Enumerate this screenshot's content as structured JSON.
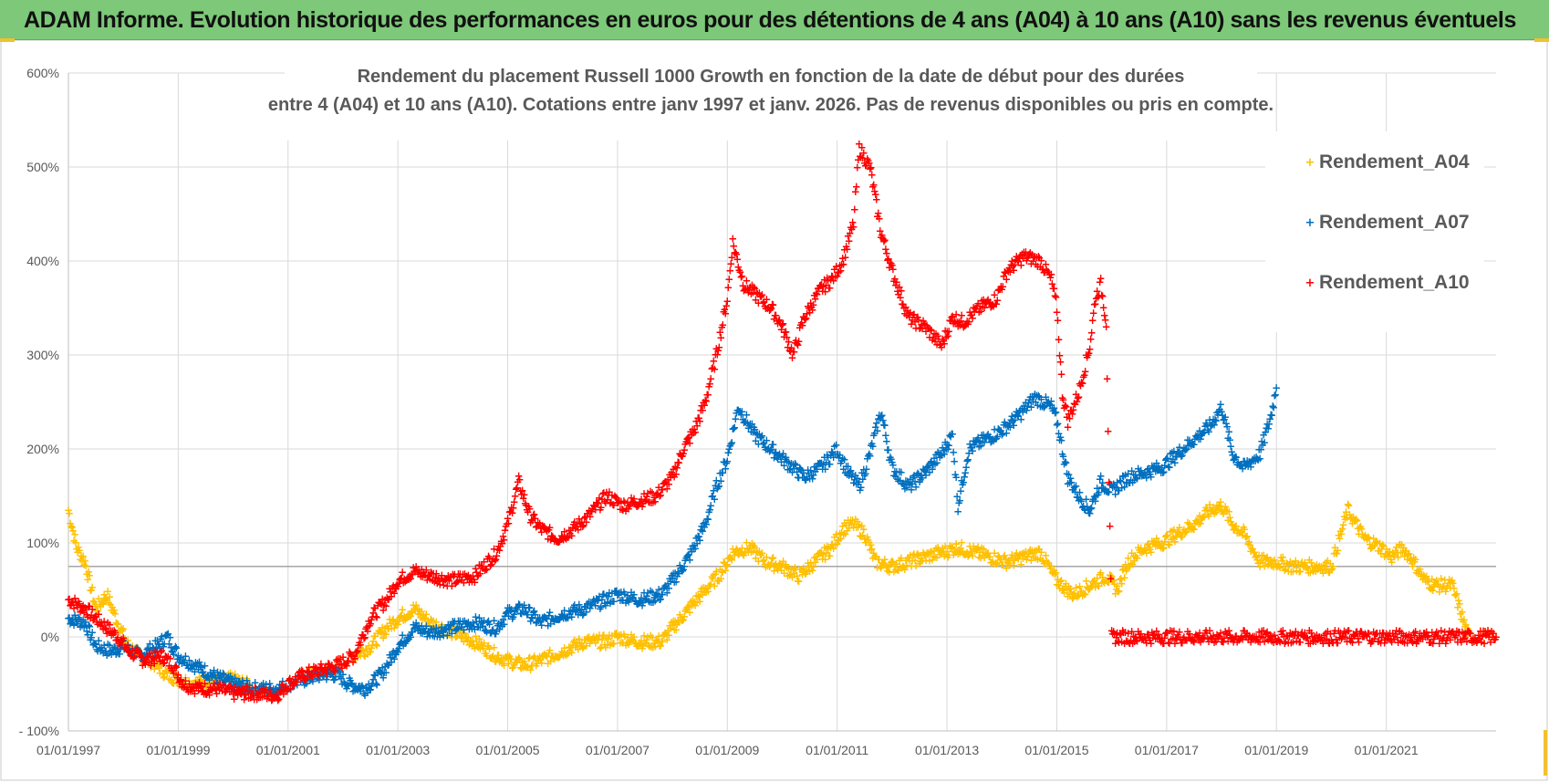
{
  "banner": {
    "title": "ADAM Informe. Evolution historique des performances en euros pour des détentions de 4 ans (A04) à 10 ans (A10) sans les revenus éventuels"
  },
  "colors": {
    "banner": "#7dc879",
    "a04": "#ffc000",
    "a07": "#0070c0",
    "a10": "#ff0000",
    "grid": "#d9d9d9"
  },
  "chart_data": {
    "type": "scatter",
    "title_line1": "Rendement du placement Russell 1000 Growth en fonction de la date de début pour des durées",
    "title_line2": "entre 4 (A04) et 10 ans (A10).  Cotations entre janv 1997 et janv. 2026. Pas de revenus disponibles ou pris en compte.",
    "ylim": [
      -100,
      600
    ],
    "xlim": [
      1997.0,
      2023.0
    ],
    "y_ticks": [
      -100,
      0,
      100,
      200,
      300,
      400,
      500,
      600
    ],
    "y_tick_labels": [
      "- 100%",
      "0%",
      "100%",
      "200%",
      "300%",
      "400%",
      "500%",
      "600%"
    ],
    "x_ticks": [
      1997,
      1999,
      2001,
      2003,
      2005,
      2007,
      2009,
      2011,
      2013,
      2015,
      2017,
      2019,
      2021
    ],
    "x_tick_labels": [
      "01/01/1997",
      "01/01/1999",
      "01/01/2001",
      "01/01/2003",
      "01/01/2005",
      "01/01/2007",
      "01/01/2009",
      "01/01/2011",
      "01/01/2013",
      "01/01/2015",
      "01/01/2017",
      "01/01/2019",
      "01/01/2021"
    ],
    "reference_line": 75,
    "legend_position": "right",
    "series": [
      {
        "name": "Rendement_A04",
        "key": "a04",
        "x": [
          1997.0,
          1997.15,
          1997.3,
          1997.5,
          1997.7,
          1997.9,
          1998.1,
          1998.3,
          1998.5,
          1998.8,
          1999.0,
          1999.3,
          1999.6,
          2000.0,
          2000.4,
          2000.8,
          2001.0,
          2001.3,
          2001.6,
          2001.9,
          2002.2,
          2002.5,
          2002.8,
          2003.0,
          2003.3,
          2003.6,
          2004.0,
          2004.4,
          2004.8,
          2005.0,
          2005.3,
          2005.6,
          2006.0,
          2006.4,
          2006.8,
          2007.0,
          2007.4,
          2007.8,
          2008.0,
          2008.3,
          2008.6,
          2008.9,
          2009.1,
          2009.4,
          2009.7,
          2010.0,
          2010.3,
          2010.6,
          2010.9,
          2011.1,
          2011.3,
          2011.5,
          2011.7,
          2012.0,
          2012.3,
          2012.6,
          2012.9,
          2013.2,
          2013.5,
          2013.8,
          2014.1,
          2014.4,
          2014.7,
          2015.0,
          2015.3,
          2015.6,
          2015.9,
          2016.1,
          2016.3,
          2016.6,
          2016.9,
          2017.2,
          2017.5,
          2017.8,
          2018.0,
          2018.2,
          2018.4,
          2018.7,
          2019.0,
          2019.3,
          2019.6,
          2019.9,
          2020.0,
          2020.3,
          2020.6,
          2020.9,
          2021.1,
          2021.3,
          2021.5,
          2021.7,
          2021.9,
          2022.2,
          2022.5,
          2022.8,
          2023.0
        ],
        "y": [
          135,
          95,
          80,
          30,
          45,
          15,
          -10,
          -20,
          -25,
          -40,
          -45,
          -50,
          -45,
          -45,
          -55,
          -62,
          -50,
          -40,
          -40,
          -30,
          -20,
          -10,
          10,
          20,
          30,
          15,
          5,
          -5,
          -20,
          -25,
          -30,
          -25,
          -15,
          -5,
          -5,
          0,
          -5,
          -5,
          10,
          30,
          50,
          70,
          90,
          95,
          80,
          75,
          65,
          80,
          95,
          115,
          120,
          110,
          80,
          75,
          80,
          85,
          90,
          95,
          90,
          85,
          80,
          85,
          90,
          60,
          45,
          55,
          65,
          50,
          80,
          95,
          100,
          110,
          120,
          135,
          140,
          120,
          110,
          80,
          80,
          75,
          75,
          75,
          75,
          135,
          105,
          95,
          85,
          95,
          80,
          60,
          55,
          55,
          0,
          0,
          0
        ]
      },
      {
        "name": "Rendement_A07",
        "key": "a07",
        "x": [
          1997.0,
          1997.3,
          1997.5,
          1997.8,
          1998.0,
          1998.3,
          1998.6,
          1998.8,
          1999.0,
          1999.3,
          1999.6,
          2000.0,
          2000.4,
          2000.8,
          2001.0,
          2001.3,
          2001.6,
          2001.9,
          2002.1,
          2002.4,
          2002.7,
          2003.0,
          2003.3,
          2003.6,
          2004.0,
          2004.4,
          2004.8,
          2005.0,
          2005.3,
          2005.6,
          2006.0,
          2006.4,
          2006.8,
          2007.0,
          2007.4,
          2007.8,
          2008.0,
          2008.3,
          2008.6,
          2008.8,
          2009.0,
          2009.2,
          2009.5,
          2009.8,
          2010.1,
          2010.4,
          2010.7,
          2011.0,
          2011.2,
          2011.4,
          2011.6,
          2011.8,
          2012.0,
          2012.3,
          2012.6,
          2012.9,
          2013.1,
          2013.2,
          2013.4,
          2013.7,
          2014.0,
          2014.3,
          2014.6,
          2014.9,
          2015.0,
          2015.2,
          2015.4,
          2015.6,
          2015.8,
          2016.0,
          2016.3,
          2016.6,
          2016.9,
          2017.2,
          2017.5,
          2017.8,
          2018.0,
          2018.2,
          2018.4,
          2018.7,
          2018.9,
          2019.0
        ],
        "y": [
          20,
          15,
          -10,
          -15,
          -10,
          -20,
          -10,
          0,
          -20,
          -30,
          -40,
          -50,
          -55,
          -55,
          -50,
          -45,
          -40,
          -40,
          -50,
          -55,
          -40,
          -10,
          10,
          5,
          10,
          15,
          10,
          25,
          30,
          15,
          25,
          30,
          40,
          45,
          40,
          45,
          60,
          85,
          120,
          160,
          190,
          245,
          215,
          200,
          185,
          170,
          180,
          200,
          175,
          160,
          195,
          240,
          180,
          160,
          175,
          195,
          215,
          140,
          200,
          210,
          220,
          235,
          255,
          245,
          230,
          170,
          150,
          135,
          165,
          155,
          170,
          175,
          180,
          195,
          210,
          225,
          245,
          195,
          180,
          195,
          235,
          265
        ]
      },
      {
        "name": "Rendement_A10",
        "key": "a10",
        "x": [
          1997.0,
          1997.3,
          1997.6,
          1997.9,
          1998.1,
          1998.4,
          1998.7,
          1998.9,
          1999.1,
          1999.4,
          1999.7,
          2000.0,
          2000.4,
          2000.8,
          2001.0,
          2001.3,
          2001.6,
          2001.9,
          2002.2,
          2002.5,
          2002.8,
          2003.0,
          2003.3,
          2003.6,
          2004.0,
          2004.4,
          2004.8,
          2005.0,
          2005.2,
          2005.4,
          2005.6,
          2005.9,
          2006.2,
          2006.5,
          2006.8,
          2007.1,
          2007.4,
          2007.7,
          2008.0,
          2008.2,
          2008.4,
          2008.6,
          2008.8,
          2009.0,
          2009.1,
          2009.3,
          2009.6,
          2009.8,
          2010.0,
          2010.2,
          2010.4,
          2010.7,
          2010.9,
          2011.1,
          2011.3,
          2011.4,
          2011.6,
          2011.8,
          2012.0,
          2012.3,
          2012.6,
          2012.9,
          2013.1,
          2013.3,
          2013.6,
          2013.9,
          2014.1,
          2014.4,
          2014.7,
          2014.9,
          2015.0,
          2015.1,
          2015.2,
          2015.4,
          2015.6,
          2015.7,
          2015.8,
          2015.9,
          2016.0,
          2016.3,
          2016.8,
          2017.5,
          2018.5,
          2019.5,
          2020.5,
          2021.5,
          2022.5,
          2023.0
        ],
        "y": [
          40,
          30,
          15,
          0,
          -15,
          -25,
          -20,
          -30,
          -50,
          -55,
          -55,
          -60,
          -60,
          -62,
          -50,
          -40,
          -35,
          -30,
          -20,
          20,
          40,
          60,
          70,
          65,
          60,
          65,
          90,
          120,
          165,
          130,
          115,
          105,
          115,
          130,
          150,
          140,
          145,
          150,
          170,
          200,
          220,
          250,
          300,
          360,
          420,
          375,
          360,
          350,
          330,
          300,
          340,
          370,
          380,
          400,
          440,
          520,
          500,
          430,
          390,
          340,
          330,
          310,
          340,
          335,
          350,
          360,
          390,
          405,
          400,
          380,
          350,
          260,
          230,
          260,
          310,
          360,
          375,
          335,
          0,
          0,
          0,
          0,
          0,
          0,
          0,
          0,
          0,
          0
        ]
      }
    ]
  }
}
